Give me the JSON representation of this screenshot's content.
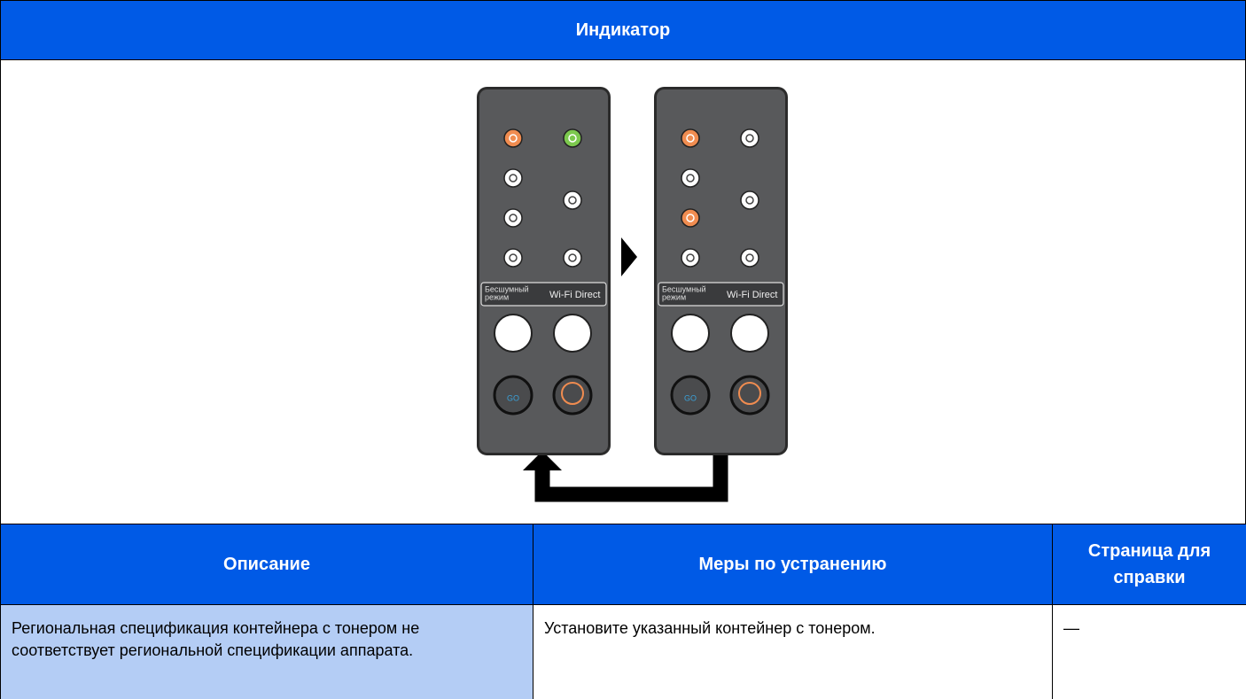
{
  "header": {
    "title": "Индикатор"
  },
  "panel_labels": {
    "quiet_mode": [
      "Бесшумный",
      "режим"
    ],
    "wifi_direct": "Wi-Fi Direct",
    "go": "GO"
  },
  "table": {
    "columns": [
      "Описание",
      "Меры по устранению",
      "Страница для справки"
    ],
    "rows": [
      [
        "Региональная спецификация контейнера с тонером не соответствует региональной спецификации аппарата.",
        "Установите указанный контейнер с тонером.",
        "—"
      ]
    ]
  }
}
